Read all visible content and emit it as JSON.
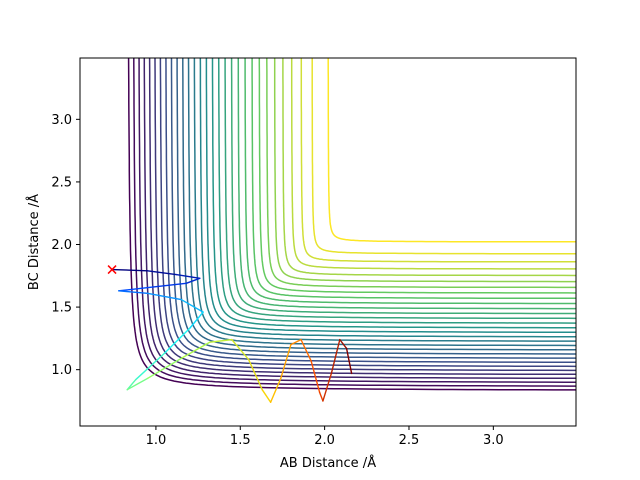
{
  "chart_data": {
    "type": "contour",
    "xlabel": "AB Distance /Å",
    "ylabel": "BC Distance /Å",
    "xlim": [
      0.55,
      3.49
    ],
    "ylim": [
      0.55,
      3.49
    ],
    "x_ticks": [
      1.0,
      1.5,
      2.0,
      2.5,
      3.0
    ],
    "x_tick_labels": [
      "1.0",
      "1.5",
      "2.0",
      "2.5",
      "3.0"
    ],
    "y_ticks": [
      1.0,
      1.5,
      2.0,
      2.5,
      3.0
    ],
    "y_tick_labels": [
      "1.0",
      "1.5",
      "2.0",
      "2.5",
      "3.0"
    ],
    "grid": false,
    "colormap": [
      "#440154",
      "#3b528b",
      "#21918c",
      "#5ec962",
      "#fde725"
    ],
    "contours": {
      "count": 30,
      "outermost_level": 2.02,
      "innermost_level": 0.83,
      "level_spacing": "dense near wall, sparse near plateau"
    },
    "trajectory": {
      "colormap": [
        "#00007f",
        "#0044ff",
        "#11f7ff",
        "#a4ff53",
        "#ffd200",
        "#ff4d00",
        "#7f0000"
      ],
      "points": [
        [
          0.74,
          1.8
        ],
        [
          0.95,
          1.79
        ],
        [
          1.12,
          1.76
        ],
        [
          1.26,
          1.73
        ],
        [
          1.18,
          1.69
        ],
        [
          0.98,
          1.66
        ],
        [
          0.78,
          1.63
        ],
        [
          0.95,
          1.61
        ],
        [
          1.15,
          1.56
        ],
        [
          1.28,
          1.46
        ],
        [
          1.2,
          1.33
        ],
        [
          1.05,
          1.13
        ],
        [
          0.88,
          0.92
        ],
        [
          0.83,
          0.84
        ],
        [
          0.95,
          0.93
        ],
        [
          1.15,
          1.09
        ],
        [
          1.32,
          1.22
        ],
        [
          1.45,
          1.24
        ],
        [
          1.55,
          1.08
        ],
        [
          1.63,
          0.84
        ],
        [
          1.68,
          0.74
        ],
        [
          1.74,
          0.93
        ],
        [
          1.8,
          1.2
        ],
        [
          1.86,
          1.24
        ],
        [
          1.92,
          1.07
        ],
        [
          1.97,
          0.82
        ],
        [
          1.99,
          0.75
        ],
        [
          2.04,
          0.97
        ],
        [
          2.09,
          1.24
        ],
        [
          2.13,
          1.17
        ],
        [
          2.16,
          0.97
        ]
      ]
    },
    "start_marker": {
      "x": 0.74,
      "y": 1.8,
      "symbol": "x",
      "color": "#ff0000"
    }
  }
}
